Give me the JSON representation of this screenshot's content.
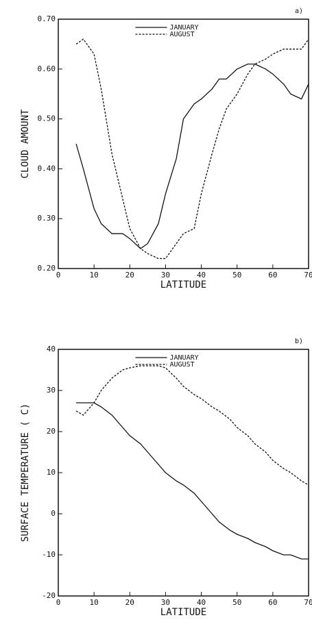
{
  "chart_data": [
    {
      "type": "line",
      "corner_label": "a)",
      "xlabel": "LATITUDE",
      "ylabel": "CLOUD AMOUNT",
      "x": [
        5,
        7,
        10,
        12,
        15,
        18,
        20,
        23,
        25,
        28,
        30,
        33,
        35,
        38,
        40,
        43,
        45,
        47,
        50,
        53,
        55,
        58,
        60,
        63,
        65,
        68,
        70
      ],
      "series": [
        {
          "name": "JANUARY",
          "color": "#111111",
          "linestyle": "solid",
          "values": [
            0.45,
            0.4,
            0.32,
            0.29,
            0.27,
            0.27,
            0.26,
            0.24,
            0.25,
            0.29,
            0.35,
            0.42,
            0.5,
            0.53,
            0.54,
            0.56,
            0.58,
            0.58,
            0.6,
            0.61,
            0.61,
            0.6,
            0.59,
            0.57,
            0.55,
            0.54,
            0.57
          ]
        },
        {
          "name": "AUGUST",
          "color": "#111111",
          "linestyle": "dashed",
          "values": [
            0.65,
            0.66,
            0.63,
            0.56,
            0.43,
            0.34,
            0.28,
            0.24,
            0.23,
            0.22,
            0.22,
            0.25,
            0.27,
            0.28,
            0.35,
            0.43,
            0.48,
            0.52,
            0.55,
            0.59,
            0.61,
            0.62,
            0.63,
            0.64,
            0.64,
            0.64,
            0.66
          ]
        }
      ],
      "xlim": [
        0,
        70
      ],
      "xticks": [
        0,
        10,
        20,
        30,
        40,
        50,
        60,
        70
      ],
      "ylim": [
        0.2,
        0.7
      ],
      "yticks": [
        {
          "value": 0.2,
          "label": "0.20"
        },
        {
          "value": 0.3,
          "label": "0.30"
        },
        {
          "value": 0.4,
          "label": "0.40"
        },
        {
          "value": 0.5,
          "label": "0.50"
        },
        {
          "value": 0.6,
          "label": "0.60"
        },
        {
          "value": 0.7,
          "label": "0.70"
        }
      ],
      "grid": false,
      "legend": "top"
    },
    {
      "type": "line",
      "corner_label": "b)",
      "xlabel": "LATITUDE",
      "ylabel": "SURFACE TEMPERATURE ( C)",
      "x": [
        5,
        7,
        10,
        12,
        15,
        18,
        20,
        23,
        25,
        28,
        30,
        33,
        35,
        38,
        40,
        43,
        45,
        48,
        50,
        53,
        55,
        58,
        60,
        63,
        65,
        68,
        70
      ],
      "series": [
        {
          "name": "JANUARY",
          "color": "#111111",
          "linestyle": "solid",
          "values": [
            27,
            27,
            27,
            26,
            24,
            21,
            19,
            17,
            15,
            12,
            10,
            8,
            7,
            5,
            3,
            0,
            -2,
            -4,
            -5,
            -6,
            -7,
            -8,
            -9,
            -10,
            -10,
            -11,
            -11
          ]
        },
        {
          "name": "AUGUST",
          "color": "#111111",
          "linestyle": "dashed",
          "values": [
            25,
            24,
            27,
            30,
            33,
            35,
            35.5,
            36,
            36,
            36,
            35.5,
            33,
            31,
            29,
            28,
            26,
            25,
            23,
            21,
            19,
            17,
            15,
            13,
            11,
            10,
            8,
            7
          ]
        }
      ],
      "xlim": [
        0,
        70
      ],
      "xticks": [
        0,
        10,
        20,
        30,
        40,
        50,
        60,
        70
      ],
      "ylim": [
        -20,
        40
      ],
      "yticks": [
        -20,
        -10,
        0,
        10,
        20,
        30,
        40
      ],
      "grid": false,
      "legend": "top"
    }
  ]
}
